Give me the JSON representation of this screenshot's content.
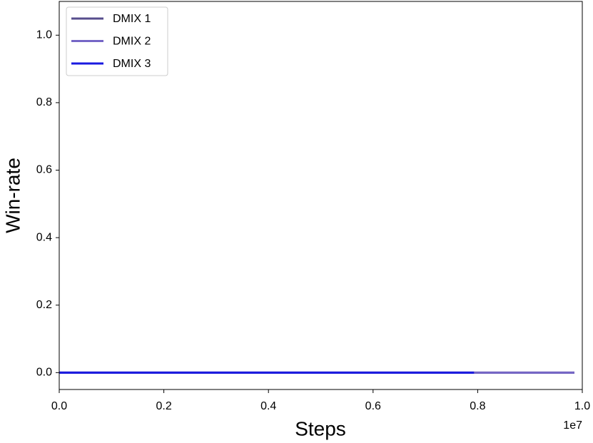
{
  "chart_data": {
    "type": "line",
    "xlabel": "Steps",
    "ylabel": "Win-rate",
    "x_offset_label": "1e7",
    "series": [
      {
        "name": "DMIX 1",
        "color": "#574d8c",
        "x": [
          0,
          0.985
        ],
        "values": [
          0,
          0
        ]
      },
      {
        "name": "DMIX 2",
        "color": "#7566c6",
        "x": [
          0,
          0.985
        ],
        "values": [
          0,
          0
        ]
      },
      {
        "name": "DMIX 3",
        "color": "#1a1ae0",
        "x": [
          0,
          0.793
        ],
        "values": [
          0,
          0
        ]
      }
    ],
    "xlim": [
      0,
      1
    ],
    "ylim": [
      -0.05,
      1.1
    ],
    "xticks": [
      {
        "value": 0,
        "label": "0.0"
      },
      0.2,
      0.4,
      0.6,
      0.8,
      {
        "value": 1,
        "label": "1.0"
      }
    ],
    "yticks": [
      {
        "value": 0,
        "label": "0.0"
      },
      0.2,
      0.4,
      0.6,
      0.8,
      {
        "value": 1,
        "label": "1.0"
      }
    ],
    "grid": false,
    "legend": "upper left"
  }
}
